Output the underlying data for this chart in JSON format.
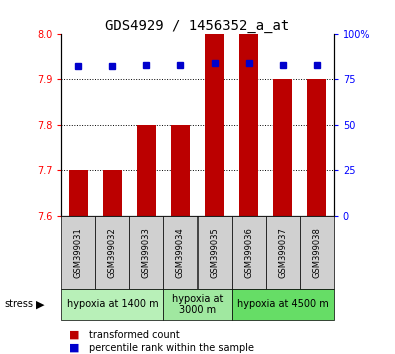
{
  "title": "GDS4929 / 1456352_a_at",
  "samples": [
    "GSM399031",
    "GSM399032",
    "GSM399033",
    "GSM399034",
    "GSM399035",
    "GSM399036",
    "GSM399037",
    "GSM399038"
  ],
  "bar_values": [
    7.7,
    7.7,
    7.8,
    7.8,
    8.0,
    8.0,
    7.9,
    7.9
  ],
  "bar_bottom": 7.6,
  "percentile_values": [
    82,
    82,
    83,
    83,
    84,
    84,
    83,
    83
  ],
  "bar_color": "#bb0000",
  "dot_color": "#0000cc",
  "ylim_left": [
    7.6,
    8.0
  ],
  "ylim_right": [
    0,
    100
  ],
  "yticks_left": [
    7.6,
    7.7,
    7.8,
    7.9,
    8.0
  ],
  "yticks_right": [
    0,
    25,
    50,
    75,
    100
  ],
  "grid_values": [
    7.7,
    7.8,
    7.9
  ],
  "groups": [
    {
      "label": "hypoxia at 1400 m",
      "start": 0,
      "end": 3,
      "color": "#b8f0b8"
    },
    {
      "label": "hypoxia at\n3000 m",
      "start": 3,
      "end": 5,
      "color": "#a0e8a0"
    },
    {
      "label": "hypoxia at 4500 m",
      "start": 5,
      "end": 8,
      "color": "#66dd66"
    }
  ],
  "stress_label": "stress",
  "legend_bar_label": "transformed count",
  "legend_dot_label": "percentile rank within the sample",
  "bar_width": 0.55,
  "tick_label_fontsize": 7,
  "title_fontsize": 10,
  "sample_label_fontsize": 6,
  "group_label_fontsize": 7
}
